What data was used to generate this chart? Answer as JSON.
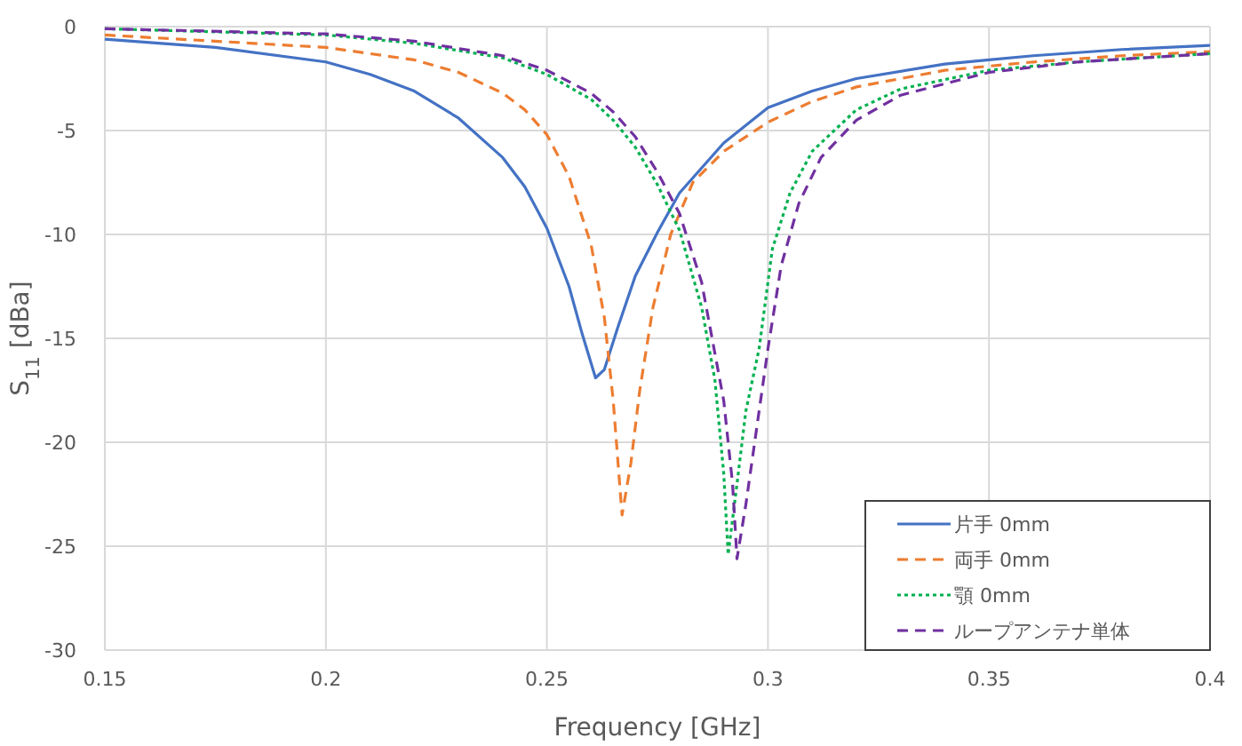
{
  "chart_data": {
    "type": "line",
    "xlabel": "Frequency [GHz]",
    "ylabel": "S$_{11}$ [dBa]",
    "xlim": [
      0.15,
      0.4
    ],
    "xticks": [
      0.15,
      0.2,
      0.25,
      0.3,
      0.35,
      0.4
    ],
    "ylim": [
      -30,
      0
    ],
    "yticks": [
      -30,
      -25,
      -20,
      -15,
      -10,
      -5,
      0
    ],
    "grid": true,
    "legend": "bottom right",
    "marker": "none",
    "series": [
      {
        "name": "片手 0mm",
        "color": "#4472c4",
        "line_style": "solid",
        "x": [
          0.15,
          0.175,
          0.2,
          0.21,
          0.22,
          0.23,
          0.24,
          0.245,
          0.25,
          0.255,
          0.258,
          0.261,
          0.263,
          0.266,
          0.27,
          0.275,
          0.28,
          0.29,
          0.3,
          0.31,
          0.32,
          0.34,
          0.35,
          0.36,
          0.38,
          0.4
        ],
        "values": [
          -0.6,
          -1.0,
          -1.7,
          -2.3,
          -3.1,
          -4.4,
          -6.3,
          -7.7,
          -9.7,
          -12.5,
          -14.8,
          -16.9,
          -16.5,
          -14.5,
          -12.0,
          -9.9,
          -8.0,
          -5.6,
          -3.9,
          -3.1,
          -2.5,
          -1.8,
          -1.6,
          -1.4,
          -1.1,
          -0.9
        ]
      },
      {
        "name": "両手 0mm",
        "color": "#ed7d31",
        "line_style": "dashed",
        "x": [
          0.15,
          0.2,
          0.22,
          0.23,
          0.24,
          0.245,
          0.25,
          0.255,
          0.26,
          0.263,
          0.265,
          0.267,
          0.269,
          0.271,
          0.274,
          0.278,
          0.283,
          0.29,
          0.3,
          0.31,
          0.32,
          0.34,
          0.36,
          0.38,
          0.4
        ],
        "values": [
          -0.4,
          -1.0,
          -1.6,
          -2.2,
          -3.2,
          -4.0,
          -5.2,
          -7.2,
          -10.5,
          -14.0,
          -18.0,
          -23.5,
          -21.0,
          -17.5,
          -13.5,
          -10.0,
          -7.5,
          -6.0,
          -4.6,
          -3.6,
          -2.9,
          -2.1,
          -1.7,
          -1.4,
          -1.2
        ]
      },
      {
        "name": "顎 0mm",
        "color": "#00b050",
        "line_style": "dotted",
        "x": [
          0.15,
          0.2,
          0.22,
          0.24,
          0.25,
          0.26,
          0.265,
          0.27,
          0.275,
          0.28,
          0.285,
          0.288,
          0.29,
          0.291,
          0.293,
          0.295,
          0.298,
          0.301,
          0.305,
          0.31,
          0.32,
          0.33,
          0.35,
          0.37,
          0.4
        ],
        "values": [
          -0.1,
          -0.4,
          -0.8,
          -1.5,
          -2.3,
          -3.5,
          -4.5,
          -5.8,
          -7.6,
          -9.8,
          -13.5,
          -17.0,
          -21.5,
          -25.4,
          -22.0,
          -18.5,
          -15.5,
          -10.7,
          -8.0,
          -6.0,
          -4.0,
          -3.0,
          -2.1,
          -1.7,
          -1.3
        ]
      },
      {
        "name": "ループアンテナ単体",
        "color": "#7030a0",
        "line_style": "dashed",
        "x": [
          0.15,
          0.2,
          0.22,
          0.24,
          0.25,
          0.26,
          0.265,
          0.27,
          0.275,
          0.28,
          0.285,
          0.29,
          0.292,
          0.293,
          0.295,
          0.297,
          0.3,
          0.303,
          0.307,
          0.312,
          0.32,
          0.33,
          0.35,
          0.37,
          0.4
        ],
        "values": [
          -0.1,
          -0.35,
          -0.7,
          -1.4,
          -2.1,
          -3.2,
          -4.1,
          -5.3,
          -7.0,
          -9.0,
          -12.3,
          -18.0,
          -22.0,
          -25.6,
          -23.0,
          -20.0,
          -15.5,
          -11.5,
          -8.5,
          -6.3,
          -4.5,
          -3.3,
          -2.2,
          -1.7,
          -1.3
        ]
      }
    ]
  }
}
